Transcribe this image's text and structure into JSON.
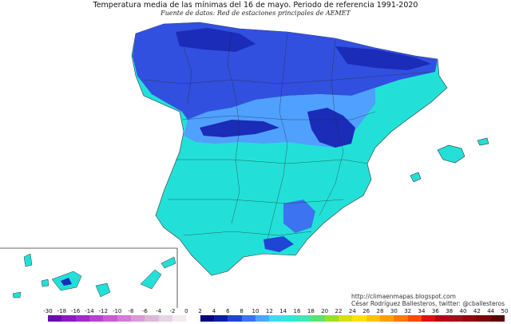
{
  "title": "Temperatura media de las mínimas del 16 de mayo. Periodo de referencia 1991-2020",
  "subtitle": "Fuente de datos: Red de estaciones principales de AEMET",
  "credits": {
    "url": "http://climaenmapas.blogspot.com",
    "author": "César Rodríguez Ballesteros, twitter: @cballesteros"
  },
  "legend": {
    "ticks": [
      "-30",
      "-18",
      "-16",
      "-14",
      "-12",
      "-10",
      "-8",
      "-6",
      "-4",
      "-2",
      "0",
      "2",
      "4",
      "6",
      "8",
      "10",
      "12",
      "14",
      "16",
      "18",
      "20",
      "22",
      "24",
      "26",
      "28",
      "30",
      "32",
      "34",
      "36",
      "38",
      "40",
      "42",
      "44",
      "50"
    ],
    "colors": [
      "#6a0fa8",
      "#8e1ab8",
      "#a52bc5",
      "#bb40cf",
      "#cc5cd6",
      "#d47ad8",
      "#d99ad6",
      "#ddb7d8",
      "#e8d3e4",
      "#f3eaf0",
      "#ffffff",
      "#060676",
      "#0b1fa6",
      "#1f45d4",
      "#3b73f0",
      "#4fa6ff",
      "#3fdcf0",
      "#2fe8d8",
      "#40e6b4",
      "#60e070",
      "#9be02a",
      "#d8e010",
      "#ffe300",
      "#ffc400",
      "#ffa100",
      "#ff7a00",
      "#ff4a00",
      "#e01010",
      "#b8001a",
      "#a0101c",
      "#8c0a10",
      "#7a0808",
      "#600000"
    ]
  },
  "map_colors": {
    "cold_north": "#3150e0",
    "cold_core": "#1a2cb8",
    "mid": "#4fa0ff",
    "warm": "#22e0d8",
    "coast": "#3ad8c8"
  }
}
